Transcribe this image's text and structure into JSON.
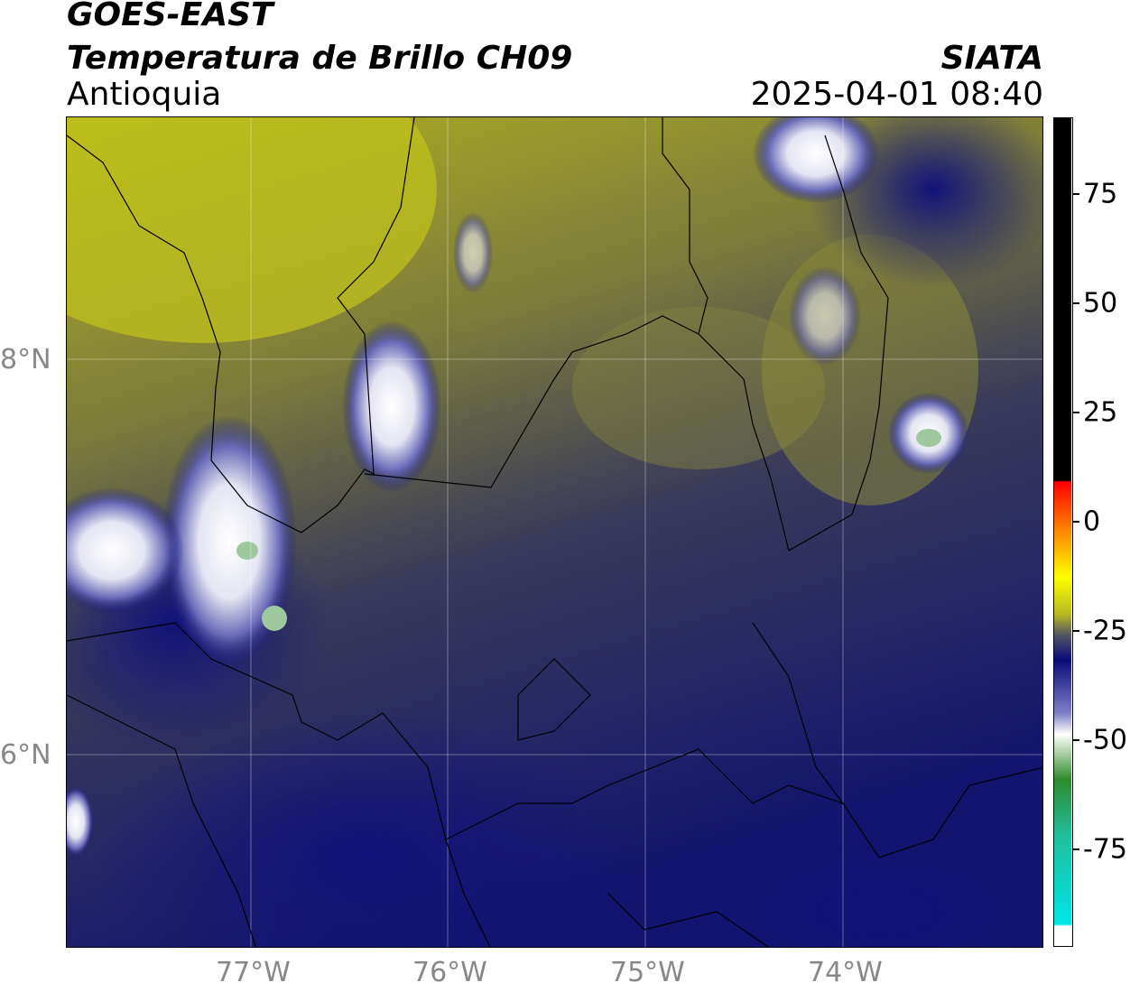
{
  "header": {
    "satellite": "GOES-EAST",
    "product": "Temperatura de Brillo CH09",
    "region": "Antioquia",
    "organization": "SIATA",
    "datetime": "2025-04-01 08:40"
  },
  "map": {
    "lat_labels": [
      "8°N",
      "6°N"
    ],
    "lon_labels": [
      "77°W",
      "76°W",
      "75°W",
      "74°W"
    ]
  },
  "colorbar": {
    "ticks": [
      "75",
      "50",
      "25",
      "0",
      "-25",
      "-50",
      "-75"
    ],
    "colors": {
      "black": "#000000",
      "red": "#ff0000",
      "orange": "#ff8800",
      "yellow": "#ffff00",
      "olive": "#b8b822",
      "navy": "#0a0a78",
      "white": "#ffffff",
      "green": "#2f8a2f",
      "cyan": "#00e5e5"
    }
  }
}
